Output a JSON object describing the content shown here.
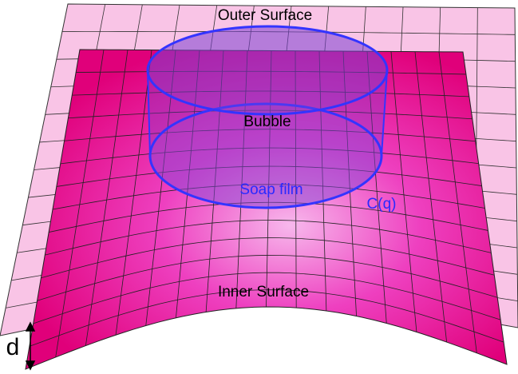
{
  "labels": {
    "outer_surface": "Outer Surface",
    "bubble": "Bubble",
    "soap_film": "Soap film",
    "curve": "C(q)",
    "inner_surface": "Inner Surface",
    "distance": "d"
  }
}
